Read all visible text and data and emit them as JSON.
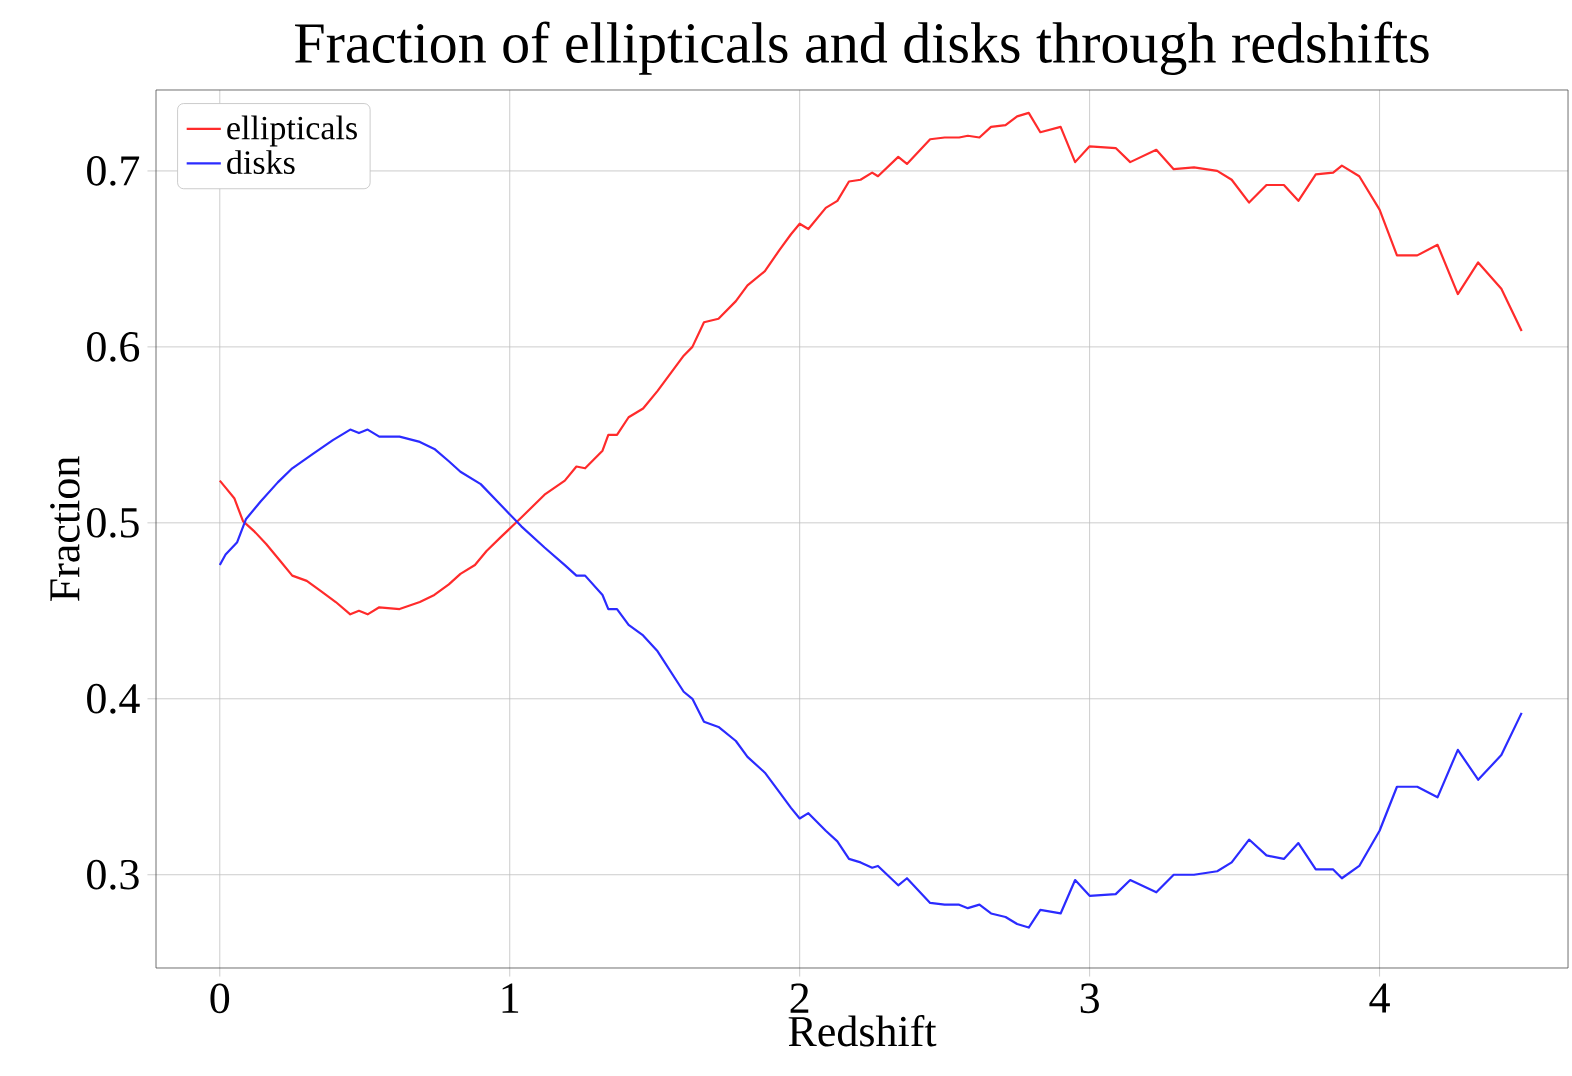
{
  "chart_data": {
    "type": "line",
    "title": "Fraction of ellipticals and disks through redshifts",
    "xlabel": "Redshift",
    "ylabel": "Fraction",
    "xlim": [
      -0.22,
      4.65
    ],
    "ylim": [
      0.247,
      0.746
    ],
    "xticks": [
      0,
      1,
      2,
      3,
      4
    ],
    "yticks": [
      0.3,
      0.4,
      0.5,
      0.6,
      0.7
    ],
    "grid": true,
    "legend": "top left",
    "line_style": "solid",
    "series": [
      {
        "name": "ellipticals",
        "color": "#ff2b2b",
        "x": [
          0,
          0.02,
          0.05,
          0.08,
          0.12,
          0.16,
          0.21,
          0.25,
          0.3,
          0.35,
          0.4,
          0.45,
          0.48,
          0.51,
          0.55,
          0.62,
          0.69,
          0.74,
          0.79,
          0.83,
          0.88,
          0.92,
          0.97,
          1.04,
          1.12,
          1.19,
          1.23,
          1.26,
          1.32,
          1.34,
          1.37,
          1.41,
          1.46,
          1.51,
          1.6,
          1.63,
          1.67,
          1.72,
          1.78,
          1.82,
          1.88,
          1.93,
          1.97,
          2.0,
          2.03,
          2.09,
          2.13,
          2.17,
          2.21,
          2.25,
          2.27,
          2.34,
          2.37,
          2.45,
          2.5,
          2.55,
          2.58,
          2.62,
          2.66,
          2.71,
          2.75,
          2.79,
          2.83,
          2.9,
          2.95,
          3.0,
          3.09,
          3.14,
          3.23,
          3.29,
          3.36,
          3.44,
          3.49,
          3.55,
          3.61,
          3.67,
          3.72,
          3.78,
          3.84,
          3.87,
          3.93,
          4.0,
          4.06,
          4.13,
          4.2,
          4.27,
          4.34,
          4.42,
          4.49
        ],
        "values": [
          0.524,
          0.52,
          0.514,
          0.501,
          0.495,
          0.488,
          0.478,
          0.47,
          0.467,
          0.461,
          0.455,
          0.448,
          0.45,
          0.448,
          0.452,
          0.451,
          0.455,
          0.459,
          0.465,
          0.471,
          0.476,
          0.484,
          0.492,
          0.503,
          0.516,
          0.524,
          0.532,
          0.531,
          0.541,
          0.55,
          0.55,
          0.56,
          0.565,
          0.575,
          0.595,
          0.6,
          0.614,
          0.616,
          0.626,
          0.635,
          0.643,
          0.655,
          0.664,
          0.67,
          0.667,
          0.679,
          0.683,
          0.694,
          0.695,
          0.699,
          0.697,
          0.708,
          0.704,
          0.718,
          0.719,
          0.719,
          0.72,
          0.719,
          0.725,
          0.726,
          0.731,
          0.733,
          0.722,
          0.725,
          0.705,
          0.714,
          0.713,
          0.705,
          0.712,
          0.701,
          0.702,
          0.7,
          0.695,
          0.682,
          0.692,
          0.692,
          0.683,
          0.698,
          0.699,
          0.703,
          0.697,
          0.678,
          0.652,
          0.652,
          0.658,
          0.63,
          0.648,
          0.633,
          0.609
        ]
      },
      {
        "name": "disks",
        "color": "#2b2bff",
        "x": [
          0,
          0.02,
          0.06,
          0.09,
          0.14,
          0.2,
          0.25,
          0.32,
          0.39,
          0.45,
          0.48,
          0.51,
          0.55,
          0.62,
          0.69,
          0.74,
          0.79,
          0.83,
          0.9,
          0.97,
          1.04,
          1.12,
          1.19,
          1.23,
          1.26,
          1.32,
          1.34,
          1.37,
          1.41,
          1.46,
          1.51,
          1.6,
          1.63,
          1.67,
          1.72,
          1.78,
          1.82,
          1.88,
          1.93,
          1.97,
          2.0,
          2.03,
          2.09,
          2.13,
          2.17,
          2.21,
          2.25,
          2.27,
          2.34,
          2.37,
          2.45,
          2.5,
          2.55,
          2.58,
          2.62,
          2.66,
          2.71,
          2.75,
          2.79,
          2.83,
          2.9,
          2.95,
          3.0,
          3.09,
          3.14,
          3.23,
          3.29,
          3.36,
          3.44,
          3.49,
          3.55,
          3.61,
          3.67,
          3.72,
          3.78,
          3.84,
          3.87,
          3.93,
          4.0,
          4.06,
          4.13,
          4.2,
          4.27,
          4.34,
          4.42,
          4.49
        ],
        "values": [
          0.476,
          0.482,
          0.489,
          0.502,
          0.512,
          0.523,
          0.531,
          0.539,
          0.547,
          0.553,
          0.551,
          0.553,
          0.549,
          0.549,
          0.546,
          0.542,
          0.535,
          0.529,
          0.522,
          0.51,
          0.498,
          0.486,
          0.476,
          0.47,
          0.47,
          0.459,
          0.451,
          0.451,
          0.442,
          0.436,
          0.427,
          0.404,
          0.4,
          0.387,
          0.384,
          0.376,
          0.367,
          0.358,
          0.347,
          0.338,
          0.332,
          0.335,
          0.325,
          0.319,
          0.309,
          0.307,
          0.304,
          0.305,
          0.294,
          0.298,
          0.284,
          0.283,
          0.283,
          0.281,
          0.283,
          0.278,
          0.276,
          0.272,
          0.27,
          0.28,
          0.278,
          0.297,
          0.288,
          0.289,
          0.297,
          0.29,
          0.3,
          0.3,
          0.302,
          0.307,
          0.32,
          0.311,
          0.309,
          0.318,
          0.303,
          0.303,
          0.298,
          0.305,
          0.325,
          0.35,
          0.35,
          0.344,
          0.371,
          0.354,
          0.368,
          0.392
        ]
      }
    ]
  }
}
